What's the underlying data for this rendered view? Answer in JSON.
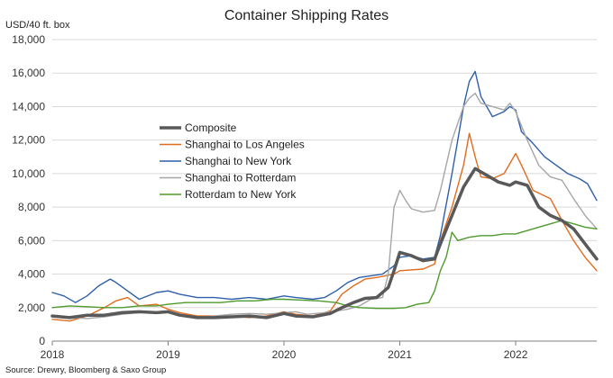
{
  "chart_data": {
    "type": "line",
    "title": "Container Shipping Rates",
    "ylabel": "USD/40 ft. box",
    "xlabel": "",
    "source": "Source: Drewry, Bloomberg & Saxo Group",
    "ylim": [
      0,
      18000
    ],
    "xlim": [
      2018.0,
      2022.7
    ],
    "y_ticks": [
      0,
      2000,
      4000,
      6000,
      8000,
      10000,
      12000,
      14000,
      16000,
      18000
    ],
    "y_tick_labels": [
      "0",
      "2,000",
      "4,000",
      "6,000",
      "8,000",
      "10,000",
      "12,000",
      "14,000",
      "16,000",
      "18,000"
    ],
    "x_ticks": [
      2018,
      2019,
      2020,
      2021,
      2022
    ],
    "x_tick_labels": [
      "2018",
      "2019",
      "2020",
      "2021",
      "2022"
    ],
    "grid": "horizontal",
    "legend_position": "upper-left-inside",
    "series": [
      {
        "name": "Composite",
        "color": "#595959",
        "width": 3.5,
        "points": [
          [
            2018.0,
            1500
          ],
          [
            2018.15,
            1400
          ],
          [
            2018.3,
            1550
          ],
          [
            2018.45,
            1550
          ],
          [
            2018.6,
            1700
          ],
          [
            2018.75,
            1750
          ],
          [
            2018.9,
            1700
          ],
          [
            2019.0,
            1750
          ],
          [
            2019.1,
            1550
          ],
          [
            2019.25,
            1400
          ],
          [
            2019.4,
            1400
          ],
          [
            2019.55,
            1450
          ],
          [
            2019.7,
            1500
          ],
          [
            2019.85,
            1400
          ],
          [
            2020.0,
            1650
          ],
          [
            2020.1,
            1500
          ],
          [
            2020.25,
            1450
          ],
          [
            2020.4,
            1650
          ],
          [
            2020.5,
            2000
          ],
          [
            2020.6,
            2300
          ],
          [
            2020.7,
            2550
          ],
          [
            2020.8,
            2600
          ],
          [
            2020.9,
            3200
          ],
          [
            2020.95,
            4200
          ],
          [
            2021.0,
            5300
          ],
          [
            2021.1,
            5100
          ],
          [
            2021.2,
            4800
          ],
          [
            2021.3,
            4900
          ],
          [
            2021.35,
            5800
          ],
          [
            2021.45,
            7500
          ],
          [
            2021.55,
            9200
          ],
          [
            2021.65,
            10300
          ],
          [
            2021.75,
            9900
          ],
          [
            2021.85,
            9500
          ],
          [
            2021.95,
            9300
          ],
          [
            2022.0,
            9500
          ],
          [
            2022.1,
            9300
          ],
          [
            2022.2,
            8000
          ],
          [
            2022.3,
            7500
          ],
          [
            2022.4,
            7200
          ],
          [
            2022.5,
            6700
          ],
          [
            2022.6,
            5800
          ],
          [
            2022.7,
            4900
          ]
        ]
      },
      {
        "name": "Shanghai to Los Angeles",
        "color": "#E06C1F",
        "width": 1.4,
        "points": [
          [
            2018.0,
            1300
          ],
          [
            2018.15,
            1200
          ],
          [
            2018.3,
            1500
          ],
          [
            2018.45,
            2000
          ],
          [
            2018.55,
            2400
          ],
          [
            2018.65,
            2600
          ],
          [
            2018.75,
            2100
          ],
          [
            2018.9,
            2200
          ],
          [
            2019.0,
            1900
          ],
          [
            2019.1,
            1700
          ],
          [
            2019.25,
            1500
          ],
          [
            2019.4,
            1500
          ],
          [
            2019.55,
            1500
          ],
          [
            2019.7,
            1400
          ],
          [
            2019.85,
            1500
          ],
          [
            2020.0,
            1750
          ],
          [
            2020.1,
            1600
          ],
          [
            2020.25,
            1500
          ],
          [
            2020.4,
            1800
          ],
          [
            2020.5,
            2800
          ],
          [
            2020.6,
            3300
          ],
          [
            2020.7,
            3700
          ],
          [
            2020.8,
            3800
          ],
          [
            2020.95,
            4000
          ],
          [
            2021.0,
            4200
          ],
          [
            2021.2,
            4300
          ],
          [
            2021.3,
            4600
          ],
          [
            2021.35,
            6000
          ],
          [
            2021.45,
            8000
          ],
          [
            2021.55,
            10500
          ],
          [
            2021.6,
            12400
          ],
          [
            2021.65,
            11000
          ],
          [
            2021.7,
            9800
          ],
          [
            2021.8,
            9700
          ],
          [
            2021.9,
            10000
          ],
          [
            2022.0,
            11200
          ],
          [
            2022.05,
            10500
          ],
          [
            2022.15,
            9000
          ],
          [
            2022.3,
            8500
          ],
          [
            2022.4,
            7200
          ],
          [
            2022.5,
            6000
          ],
          [
            2022.6,
            5000
          ],
          [
            2022.7,
            4200
          ]
        ]
      },
      {
        "name": "Shanghai to New York",
        "color": "#2E5FAA",
        "width": 1.4,
        "points": [
          [
            2018.0,
            2900
          ],
          [
            2018.1,
            2700
          ],
          [
            2018.2,
            2300
          ],
          [
            2018.3,
            2700
          ],
          [
            2018.4,
            3300
          ],
          [
            2018.5,
            3700
          ],
          [
            2018.55,
            3500
          ],
          [
            2018.65,
            3000
          ],
          [
            2018.75,
            2500
          ],
          [
            2018.9,
            2900
          ],
          [
            2019.0,
            3000
          ],
          [
            2019.1,
            2800
          ],
          [
            2019.25,
            2600
          ],
          [
            2019.4,
            2600
          ],
          [
            2019.55,
            2500
          ],
          [
            2019.7,
            2600
          ],
          [
            2019.85,
            2500
          ],
          [
            2020.0,
            2700
          ],
          [
            2020.1,
            2600
          ],
          [
            2020.25,
            2500
          ],
          [
            2020.35,
            2600
          ],
          [
            2020.45,
            3000
          ],
          [
            2020.55,
            3500
          ],
          [
            2020.65,
            3800
          ],
          [
            2020.75,
            3900
          ],
          [
            2020.85,
            4000
          ],
          [
            2020.95,
            4500
          ],
          [
            2021.0,
            5000
          ],
          [
            2021.1,
            5100
          ],
          [
            2021.2,
            4900
          ],
          [
            2021.3,
            5000
          ],
          [
            2021.35,
            6300
          ],
          [
            2021.45,
            10000
          ],
          [
            2021.5,
            12000
          ],
          [
            2021.55,
            14000
          ],
          [
            2021.6,
            15500
          ],
          [
            2021.65,
            16100
          ],
          [
            2021.7,
            14600
          ],
          [
            2021.8,
            13400
          ],
          [
            2021.9,
            13700
          ],
          [
            2021.95,
            14000
          ],
          [
            2022.0,
            13800
          ],
          [
            2022.05,
            12500
          ],
          [
            2022.15,
            11800
          ],
          [
            2022.25,
            11000
          ],
          [
            2022.35,
            10500
          ],
          [
            2022.45,
            10000
          ],
          [
            2022.55,
            9700
          ],
          [
            2022.62,
            9400
          ],
          [
            2022.7,
            8400
          ]
        ]
      },
      {
        "name": "Shanghai to Rotterdam",
        "color": "#A6A6A6",
        "width": 1.4,
        "points": [
          [
            2018.0,
            1500
          ],
          [
            2018.15,
            1400
          ],
          [
            2018.3,
            1350
          ],
          [
            2018.45,
            1450
          ],
          [
            2018.6,
            1600
          ],
          [
            2018.75,
            1700
          ],
          [
            2018.9,
            1750
          ],
          [
            2019.0,
            1800
          ],
          [
            2019.1,
            1500
          ],
          [
            2019.25,
            1400
          ],
          [
            2019.4,
            1500
          ],
          [
            2019.55,
            1600
          ],
          [
            2019.7,
            1650
          ],
          [
            2019.85,
            1600
          ],
          [
            2020.0,
            1700
          ],
          [
            2020.1,
            1750
          ],
          [
            2020.2,
            1600
          ],
          [
            2020.35,
            1700
          ],
          [
            2020.45,
            1800
          ],
          [
            2020.55,
            1900
          ],
          [
            2020.65,
            2100
          ],
          [
            2020.75,
            2500
          ],
          [
            2020.85,
            2600
          ],
          [
            2020.9,
            4000
          ],
          [
            2020.95,
            8000
          ],
          [
            2021.0,
            9000
          ],
          [
            2021.05,
            8400
          ],
          [
            2021.1,
            7900
          ],
          [
            2021.2,
            7700
          ],
          [
            2021.3,
            7800
          ],
          [
            2021.35,
            9000
          ],
          [
            2021.45,
            12000
          ],
          [
            2021.55,
            14000
          ],
          [
            2021.6,
            14500
          ],
          [
            2021.65,
            14800
          ],
          [
            2021.7,
            14200
          ],
          [
            2021.8,
            14000
          ],
          [
            2021.9,
            13800
          ],
          [
            2021.95,
            14200
          ],
          [
            2022.0,
            13700
          ],
          [
            2022.1,
            12000
          ],
          [
            2022.2,
            10500
          ],
          [
            2022.3,
            9800
          ],
          [
            2022.4,
            9600
          ],
          [
            2022.5,
            8500
          ],
          [
            2022.6,
            7500
          ],
          [
            2022.7,
            6700
          ]
        ]
      },
      {
        "name": "Rotterdam to New York",
        "color": "#4F9A2E",
        "width": 1.4,
        "points": [
          [
            2018.0,
            2000
          ],
          [
            2018.15,
            2100
          ],
          [
            2018.3,
            2050
          ],
          [
            2018.45,
            2000
          ],
          [
            2018.6,
            2000
          ],
          [
            2018.75,
            2100
          ],
          [
            2018.9,
            2100
          ],
          [
            2019.0,
            2200
          ],
          [
            2019.15,
            2300
          ],
          [
            2019.3,
            2300
          ],
          [
            2019.45,
            2300
          ],
          [
            2019.6,
            2400
          ],
          [
            2019.75,
            2400
          ],
          [
            2019.9,
            2500
          ],
          [
            2020.0,
            2500
          ],
          [
            2020.15,
            2450
          ],
          [
            2020.3,
            2400
          ],
          [
            2020.45,
            2300
          ],
          [
            2020.55,
            2100
          ],
          [
            2020.65,
            2000
          ],
          [
            2020.8,
            1950
          ],
          [
            2020.95,
            1950
          ],
          [
            2021.05,
            2000
          ],
          [
            2021.15,
            2200
          ],
          [
            2021.25,
            2300
          ],
          [
            2021.3,
            3000
          ],
          [
            2021.35,
            4200
          ],
          [
            2021.4,
            5000
          ],
          [
            2021.45,
            6500
          ],
          [
            2021.5,
            6000
          ],
          [
            2021.6,
            6200
          ],
          [
            2021.7,
            6300
          ],
          [
            2021.8,
            6300
          ],
          [
            2021.9,
            6400
          ],
          [
            2022.0,
            6400
          ],
          [
            2022.1,
            6600
          ],
          [
            2022.2,
            6800
          ],
          [
            2022.3,
            7000
          ],
          [
            2022.4,
            7200
          ],
          [
            2022.5,
            7000
          ],
          [
            2022.6,
            6800
          ],
          [
            2022.7,
            6700
          ]
        ]
      }
    ]
  }
}
